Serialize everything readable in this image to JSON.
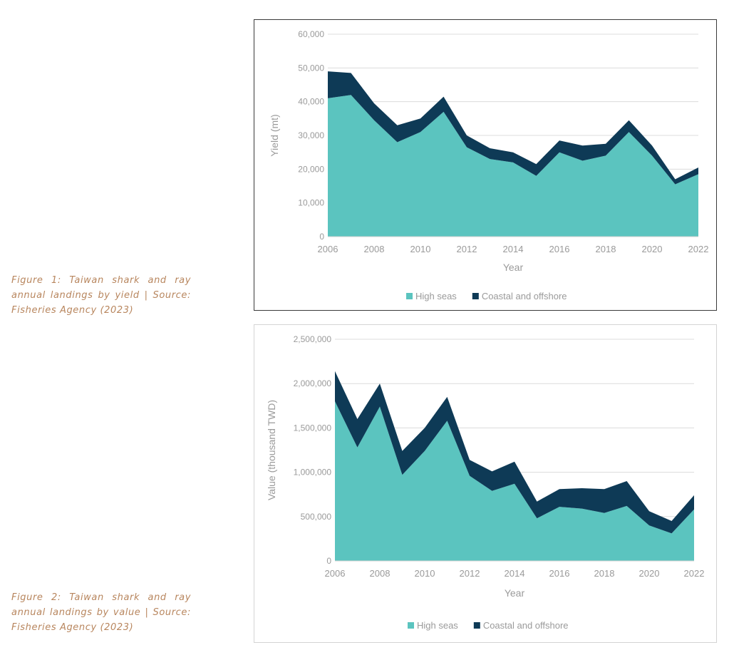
{
  "captions": {
    "figure1": "Figure 1: Taiwan shark and ray annual landings by yield | Source: Fisheries Agency (2023)",
    "figure2": "Figure 2: Taiwan shark and ray annual landings by value | Source: Fisheries Agency (2023)"
  },
  "colors": {
    "high_seas": "#5bc4bf",
    "coastal_offshore": "#0e3a56",
    "gridline": "#dcdcdc",
    "axis_text": "#9a9a9a"
  },
  "chart_data": [
    {
      "type": "area",
      "stacked": true,
      "title": "",
      "xlabel": "Year",
      "ylabel": "Yield (mt)",
      "x": [
        2006,
        2007,
        2008,
        2009,
        2010,
        2011,
        2012,
        2013,
        2014,
        2015,
        2016,
        2017,
        2018,
        2019,
        2020,
        2021,
        2022
      ],
      "xticks": [
        "2006",
        "2008",
        "2010",
        "2012",
        "2014",
        "2016",
        "2018",
        "2020",
        "2022"
      ],
      "yticks": [
        "0",
        "10,000",
        "20,000",
        "30,000",
        "40,000",
        "50,000",
        "60,000"
      ],
      "ylim": [
        0,
        60000
      ],
      "grid": true,
      "legend_position": "bottom",
      "series": [
        {
          "name": "High seas",
          "color": "#5bc4bf",
          "values": [
            41000,
            42000,
            34500,
            28000,
            31000,
            37000,
            26500,
            23000,
            22000,
            18000,
            25000,
            22500,
            24000,
            31000,
            24000,
            15500,
            18500
          ]
        },
        {
          "name": "Coastal and offshore",
          "color": "#0e3a56",
          "values": [
            8000,
            6500,
            5000,
            5000,
            4000,
            4500,
            3500,
            3200,
            3000,
            3500,
            3500,
            4500,
            3500,
            3500,
            3000,
            1500,
            2000
          ]
        }
      ]
    },
    {
      "type": "area",
      "stacked": true,
      "title": "",
      "xlabel": "Year",
      "ylabel": "Value (thousand TWD)",
      "x": [
        2006,
        2007,
        2008,
        2009,
        2010,
        2011,
        2012,
        2013,
        2014,
        2015,
        2016,
        2017,
        2018,
        2019,
        2020,
        2021,
        2022
      ],
      "xticks": [
        "2006",
        "2008",
        "2010",
        "2012",
        "2014",
        "2016",
        "2018",
        "2020",
        "2022"
      ],
      "yticks": [
        "0",
        "500,000",
        "1,000,000",
        "1,500,000",
        "2,000,000",
        "2,500,000"
      ],
      "ylim": [
        0,
        2500000
      ],
      "grid": true,
      "legend_position": "bottom",
      "series": [
        {
          "name": "High seas",
          "color": "#5bc4bf",
          "values": [
            1800000,
            1280000,
            1740000,
            970000,
            1240000,
            1580000,
            960000,
            790000,
            870000,
            480000,
            610000,
            590000,
            540000,
            620000,
            400000,
            310000,
            580000
          ]
        },
        {
          "name": "Coastal and offshore",
          "color": "#0e3a56",
          "values": [
            340000,
            320000,
            260000,
            270000,
            260000,
            270000,
            180000,
            220000,
            250000,
            190000,
            200000,
            230000,
            270000,
            280000,
            160000,
            140000,
            160000
          ]
        }
      ]
    }
  ]
}
